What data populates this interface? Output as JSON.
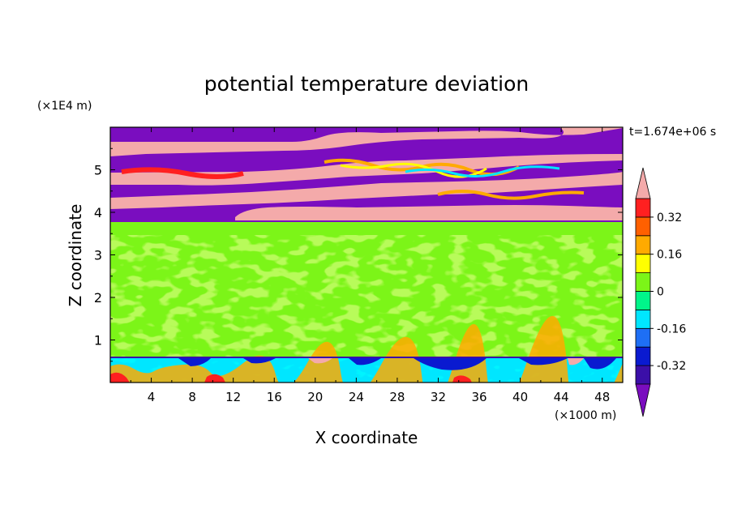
{
  "chart_data": {
    "type": "heatmap",
    "title": "potential temperature deviation",
    "xlabel": "X coordinate",
    "ylabel": "Z coordinate",
    "x_unit": "(×1000 m)",
    "y_unit": "(×1E4 m)",
    "time_label": "t=1.674e+06 s",
    "x_ticks": [
      "4",
      "8",
      "12",
      "16",
      "20",
      "24",
      "28",
      "32",
      "36",
      "40",
      "44",
      "48"
    ],
    "y_ticks": [
      "1",
      "2",
      "3",
      "4",
      "5"
    ],
    "xlim": [
      0,
      50
    ],
    "ylim": [
      0,
      6
    ],
    "colorbar": {
      "tick_labels": [
        "0.32",
        "0.16",
        "0",
        "-0.16",
        "-0.32"
      ],
      "tick_values": [
        0.32,
        0.16,
        0,
        -0.16,
        -0.32
      ],
      "levels": [
        -0.4,
        -0.32,
        -0.24,
        -0.16,
        -0.08,
        0,
        0.08,
        0.16,
        0.24,
        0.32,
        0.4
      ],
      "colors": [
        "#7a0dbf",
        "#3b0fa8",
        "#0a1ad0",
        "#1e6ff5",
        "#00e6ff",
        "#00f58a",
        "#7cf518",
        "#ffff00",
        "#ffaa00",
        "#ff6000",
        "#ff2020",
        "#f4aaaa"
      ],
      "extend": "both"
    },
    "bands": [
      {
        "z": [
          0,
          0.6
        ],
        "description_value": "mixed -0.16 to 0.4"
      },
      {
        "z": [
          0.6,
          3.8
        ],
        "value": 0.04
      },
      {
        "z": [
          3.8,
          6.0
        ],
        "description_value": "alternating -0.4 and 0.4 layers"
      }
    ]
  }
}
